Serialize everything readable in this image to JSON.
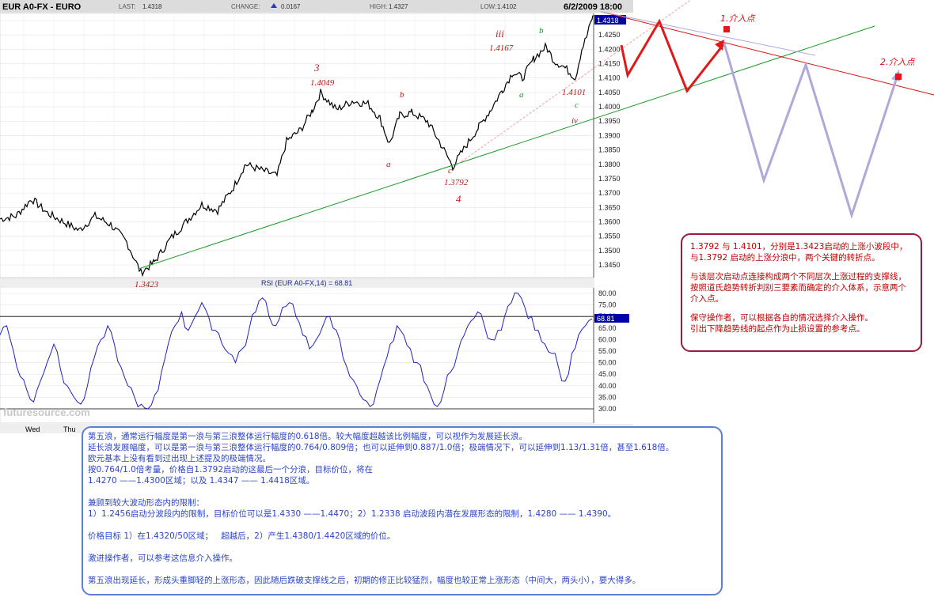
{
  "header": {
    "symbol": "EUR A0-FX - EURO",
    "last_label": "LAST:",
    "last_value": "1.4318",
    "change_label": "CHANGE:",
    "change_value": "0.0167",
    "high_label": "HIGH:",
    "high_value": "1.4327",
    "low_label": "LOW:",
    "low_value": "1.4102",
    "datetime": "6/2/2009 18:00"
  },
  "colors": {
    "price_line": "#000000",
    "rsi_line": "#2020c0",
    "green_trend": "#1a9a2a",
    "red_trend": "#d81010",
    "purple_path": "#b0a8d8",
    "pink_box_border": "#9b1b3b",
    "blue_box_border": "#5b7fd3",
    "last_price_bg": "#0000aa"
  },
  "chart_data": [
    {
      "type": "line",
      "title": "EUR A0-FX - EURO",
      "ylim": [
        1.3405,
        1.4335
      ],
      "y_ticks": [
        "1.4300",
        "1.4250",
        "1.4200",
        "1.4150",
        "1.4100",
        "1.4050",
        "1.4000",
        "1.3950",
        "1.3900",
        "1.3850",
        "1.3800",
        "1.3750",
        "1.3700",
        "1.3650",
        "1.3600",
        "1.3550",
        "1.3500",
        "1.3450"
      ],
      "last_price_tag": "1.4318",
      "wave_points": [
        {
          "label": "1.3423",
          "value": 1.3423
        },
        {
          "label": "1.4049",
          "value": 1.4049
        },
        {
          "label": "1.3792",
          "value": 1.3792
        },
        {
          "label": "1.4167",
          "value": 1.4167
        },
        {
          "label": "1.4101",
          "value": 1.4101
        },
        {
          "label": "1.4318",
          "value": 1.4318
        }
      ],
      "wave_labels": [
        "3",
        "iii",
        "b",
        "a",
        "b",
        "a",
        "c",
        "c",
        "iv",
        "4"
      ],
      "x_labels": [
        "Wed",
        "Thu"
      ],
      "trend_lines": [
        "green support line from 1.3423 low",
        "red channel line from 1.3792 low",
        "red descending line",
        "lavender descending line"
      ],
      "annotations": [
        "1.介入点",
        "2.介入点"
      ]
    },
    {
      "type": "line",
      "title": "RSI (EUR A0-FX,14) = 68.81",
      "ylim": [
        28,
        82
      ],
      "y_ticks": [
        "80.00",
        "75.00",
        "70.00",
        "65.00",
        "60.00",
        "55.00",
        "50.00",
        "45.00",
        "40.00",
        "35.00",
        "30.00"
      ],
      "reference_lines": [
        70,
        30
      ],
      "last_value_tag": "68.81",
      "series": [
        {
          "values": [
            62,
            66,
            55,
            44,
            38,
            33,
            42,
            50,
            58,
            47,
            40,
            35,
            32,
            40,
            52,
            60,
            66,
            58,
            48,
            40,
            35,
            32,
            30,
            36,
            46,
            58,
            66,
            72,
            64,
            70,
            76,
            70,
            64,
            58,
            54,
            50,
            56,
            64,
            72,
            78,
            70,
            66,
            74,
            76,
            70,
            62,
            56,
            60,
            66,
            70,
            64,
            52,
            44,
            40,
            34,
            31,
            38,
            48,
            58,
            66,
            62,
            56,
            50,
            42,
            36,
            31,
            38,
            46,
            54,
            62,
            68,
            72,
            66,
            60,
            64,
            70,
            76,
            80,
            74,
            70,
            64,
            58,
            54,
            48,
            42,
            54,
            62,
            66,
            69
          ]
        }
      ]
    }
  ],
  "watermark": "futuresource.com",
  "pink_box": [
    "1.3792 与 1.4101，分别是1.3423启动的上涨小波段中，与1.3792 启动的上涨分浪中，两个关键的转折点。",
    "与该层次启动点连接构成两个不同层次上涨过程的支撑线，按照道氏趋势转折判别三要素而确定的介入体系，示意两个介入点。",
    "保守操作者，可以根据各自的情况选择介入操作。\n引出下降趋势线的起点作为止损设置的参考点。"
  ],
  "blue_box": [
    "第五浪，通常运行幅度是第一浪与第三浪整体运行幅度的0.618倍。较大幅度超越该比例幅度，可以视作为发展延长浪。",
    "延长浪发展幅度，可以是第一浪与第三浪整体运行幅度的0.764/0.809倍；也可以延伸到0.887/1.0倍；极端情况下，可以延伸到1.13/1.31倍，甚至1.618倍。",
    "欧元基本上没有看到过出现上述提及的极端情况。",
    "按0.764/1.0倍考量，价格自1.3792启动的这最后一个分浪，目标价位，将在",
    "1.4270 ——1.4300区域；以及 1.4347 —— 1.4418区域。",
    "",
    "兼顾到较大波动形态内的限制：",
    "1）1.2456启动分波段内的限制，目标价位可以是1.4330 ——1.4470；2）1.2338 启动波段内潜在发展形态的限制，1.4280 —— 1.4390。",
    "",
    "价格目标 1）在1.4320/50区域；   超越后，2）产生1.4380/1.4420区域的价位。",
    "",
    "激进操作者，可以参考这信息介入操作。",
    "",
    "第五浪出现延长，形成头重脚轻的上涨形态，因此随后跌破支撑线之后，初期的修正比较猛烈，幅度也较正常上涨形态（中间大，两头小），要大得多。"
  ]
}
